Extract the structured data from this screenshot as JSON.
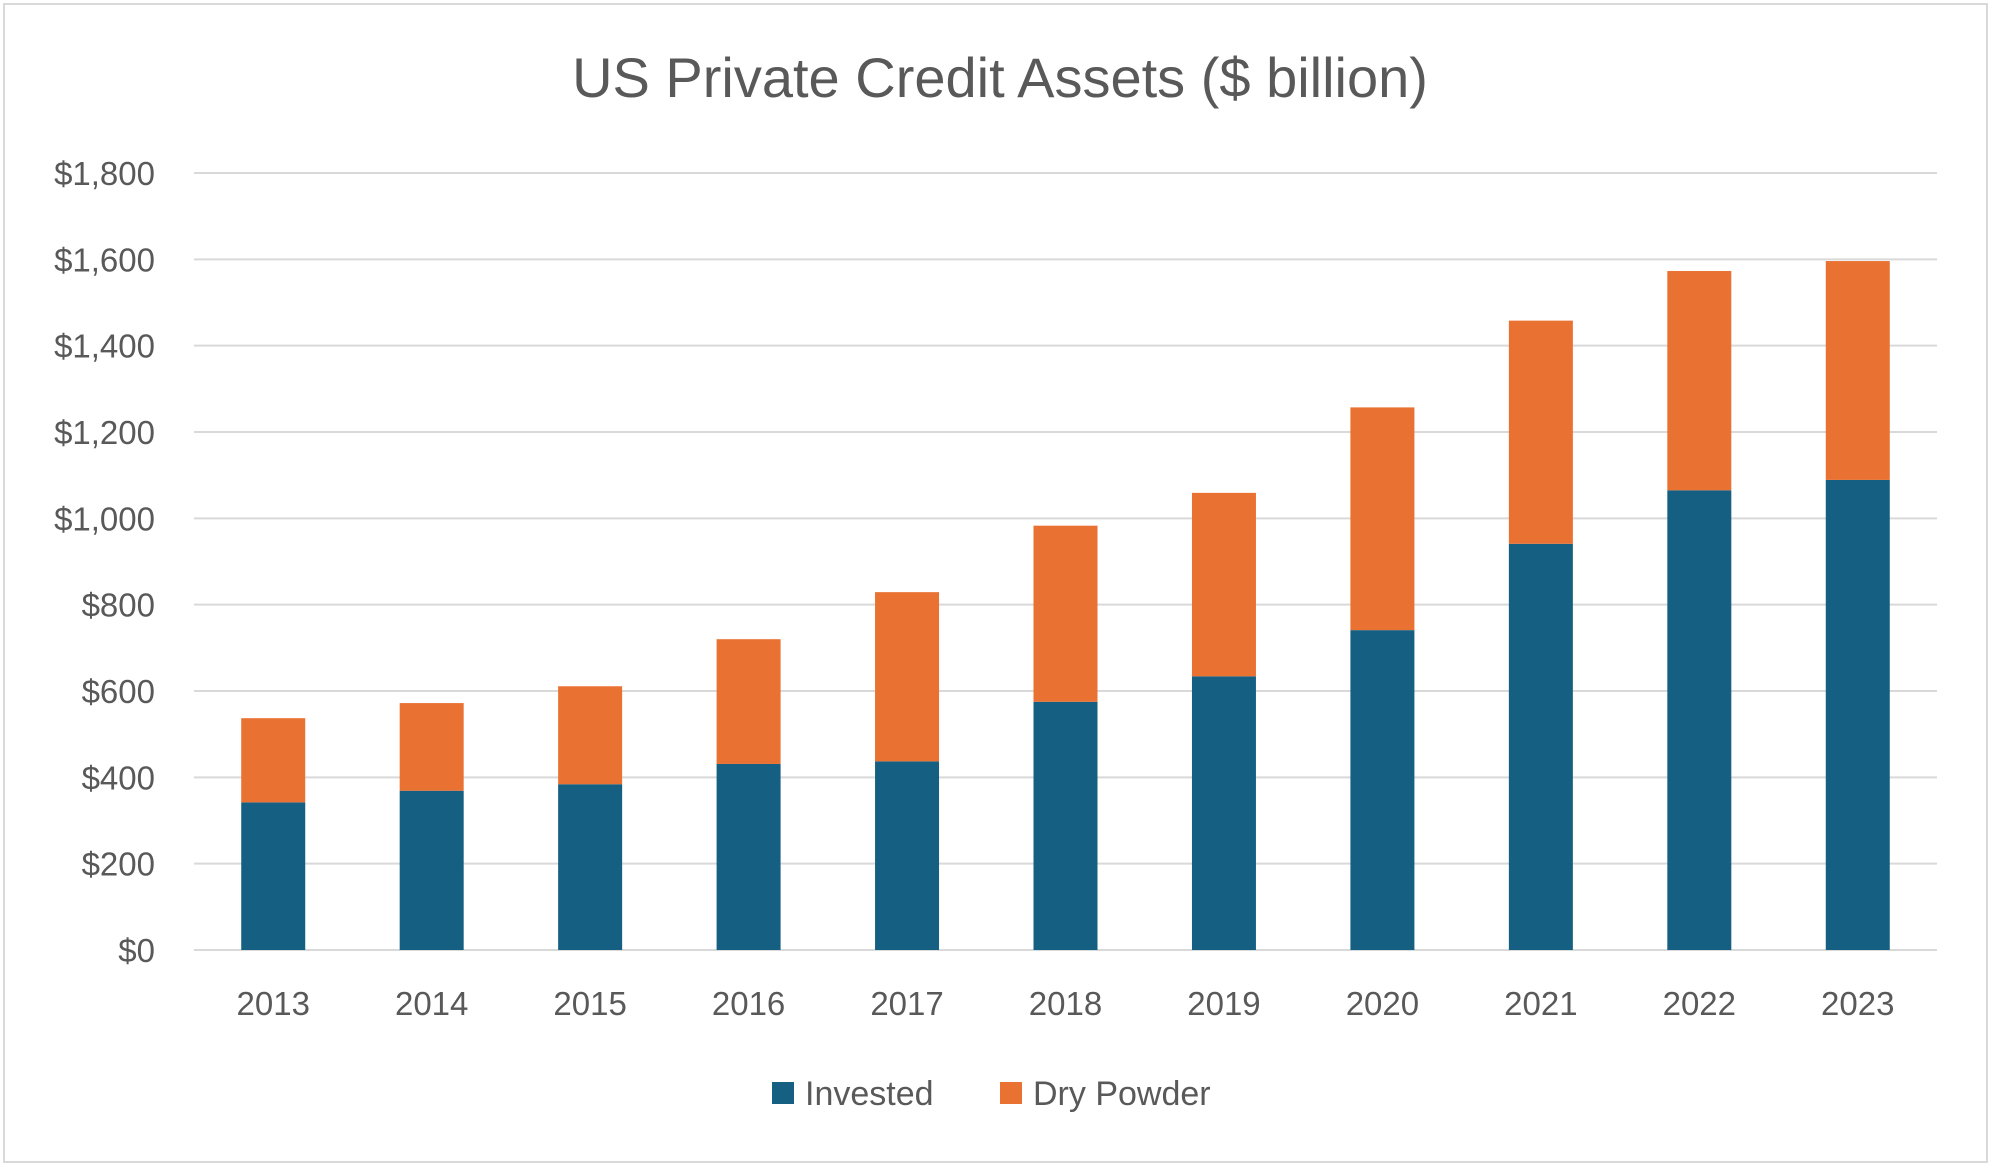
{
  "chart_data": {
    "type": "bar",
    "stacked": true,
    "title": "US Private Credit Assets ($ billion)",
    "xlabel": "",
    "ylabel": "",
    "categories": [
      "2013",
      "2014",
      "2015",
      "2016",
      "2017",
      "2018",
      "2019",
      "2020",
      "2021",
      "2022",
      "2023"
    ],
    "series": [
      {
        "name": "Invested",
        "color": "#156082",
        "values": [
          342,
          369,
          384,
          431,
          437,
          575,
          634,
          741,
          941,
          1065,
          1089
        ]
      },
      {
        "name": "Dry Powder",
        "color": "#E97132",
        "values": [
          195,
          203,
          227,
          289,
          392,
          408,
          425,
          516,
          517,
          508,
          507
        ]
      }
    ],
    "ylim": [
      0,
      1800
    ],
    "yticks": [
      0,
      200,
      400,
      600,
      800,
      1000,
      1200,
      1400,
      1600,
      1800
    ],
    "ytick_labels": [
      "$0",
      "$200",
      "$400",
      "$600",
      "$800",
      "$1,000",
      "$1,200",
      "$1,400",
      "$1,600",
      "$1,800"
    ],
    "grid": true,
    "legend": "bottom"
  }
}
